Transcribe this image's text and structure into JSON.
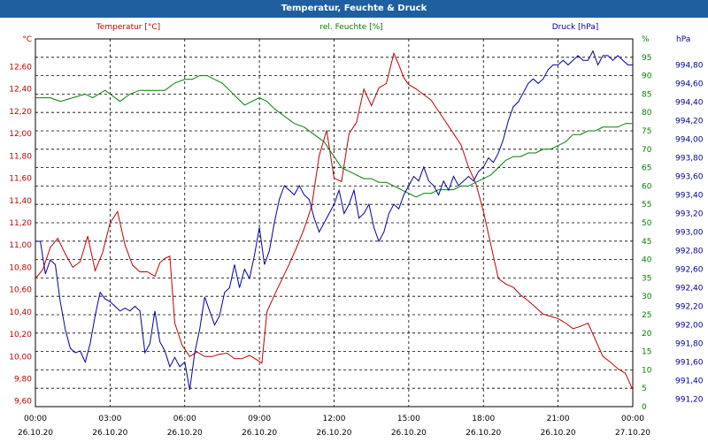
{
  "window": {
    "title": "Temperatur, Feuchte & Druck"
  },
  "chart_data": {
    "type": "line",
    "title": "Temperatur, Feuchte & Druck",
    "x_ticks": [
      {
        "time": "00:00",
        "date": "26.10.20"
      },
      {
        "time": "03:00",
        "date": "26.10.20"
      },
      {
        "time": "06:00",
        "date": "26.10.20"
      },
      {
        "time": "09:00",
        "date": "26.10.20"
      },
      {
        "time": "12:00",
        "date": "26.10.20"
      },
      {
        "time": "15:00",
        "date": "26.10.20"
      },
      {
        "time": "18:00",
        "date": "26.10.20"
      },
      {
        "time": "21:00",
        "date": "26.10.20"
      },
      {
        "time": "00:00",
        "date": "27.10.20"
      }
    ],
    "xlim": [
      0,
      24
    ],
    "axes": {
      "temp": {
        "unit": "°C",
        "ylim": [
          9.55,
          12.85
        ],
        "ticks": [
          "9,60",
          "9,80",
          "10,00",
          "10,20",
          "10,40",
          "10,60",
          "10,80",
          "11,00",
          "11,20",
          "11,40",
          "11,60",
          "11,80",
          "12,00",
          "12,20",
          "12,40",
          "12,60"
        ],
        "color": "#c00000"
      },
      "humidity": {
        "unit": "%",
        "ylim": [
          0,
          100
        ],
        "ticks": [
          "0",
          "5",
          "10",
          "15",
          "20",
          "25",
          "30",
          "35",
          "40",
          "45",
          "50",
          "55",
          "60",
          "65",
          "70",
          "75",
          "80",
          "85",
          "90",
          "95",
          "%"
        ],
        "color": "#008000"
      },
      "pressure": {
        "unit": "hPa",
        "ylim": [
          991.12,
          995.08
        ],
        "ticks": [
          "991,20",
          "991,40",
          "991,60",
          "991,80",
          "992,00",
          "992,20",
          "992,40",
          "992,60",
          "992,80",
          "993,00",
          "993,20",
          "993,40",
          "993,60",
          "993,80",
          "994,00",
          "994,20",
          "994,40",
          "994,60",
          "994,80",
          "hPa"
        ],
        "color": "#0000a0"
      }
    },
    "series": [
      {
        "name": "Temperatur [°C]",
        "axis": "temp",
        "color": "#c00000",
        "x": [
          0,
          0.3,
          0.6,
          0.9,
          1.2,
          1.5,
          1.8,
          2.1,
          2.4,
          2.7,
          3.0,
          3.3,
          3.6,
          3.9,
          4.2,
          4.5,
          4.8,
          5.0,
          5.2,
          5.4,
          5.6,
          5.9,
          6.2,
          6.5,
          6.8,
          7.1,
          7.4,
          7.7,
          8.0,
          8.3,
          8.6,
          8.9,
          9.1,
          9.3,
          9.6,
          9.9,
          10.2,
          10.5,
          10.8,
          11.1,
          11.4,
          11.7,
          12.0,
          12.3,
          12.6,
          12.9,
          13.2,
          13.5,
          13.8,
          14.1,
          14.4,
          14.6,
          14.8,
          15.0,
          15.3,
          15.6,
          15.9,
          16.2,
          16.5,
          16.8,
          17.1,
          17.4,
          17.7,
          18.0,
          18.3,
          18.6,
          18.9,
          19.2,
          19.5,
          19.8,
          20.1,
          20.4,
          20.7,
          21.0,
          21.3,
          21.6,
          21.9,
          22.2,
          22.5,
          22.8,
          23.1,
          23.4,
          23.7,
          24.0
        ],
        "values": [
          10.7,
          10.78,
          10.98,
          11.06,
          10.92,
          10.8,
          10.85,
          11.08,
          10.77,
          10.93,
          11.2,
          11.3,
          11.0,
          10.82,
          10.76,
          10.76,
          10.72,
          10.84,
          10.88,
          10.9,
          10.3,
          10.1,
          10.0,
          10.04,
          10.0,
          10.0,
          10.02,
          10.03,
          9.98,
          9.98,
          10.01,
          9.97,
          9.94,
          10.4,
          10.55,
          10.69,
          10.83,
          10.98,
          11.15,
          11.35,
          11.8,
          12.03,
          11.6,
          11.57,
          12.0,
          12.1,
          12.4,
          12.25,
          12.41,
          12.45,
          12.72,
          12.62,
          12.5,
          12.44,
          12.4,
          12.35,
          12.3,
          12.2,
          12.1,
          12.0,
          11.9,
          11.7,
          11.55,
          11.3,
          11.0,
          10.7,
          10.65,
          10.62,
          10.55,
          10.5,
          10.44,
          10.38,
          10.36,
          10.34,
          10.3,
          10.25,
          10.27,
          10.3,
          10.15,
          10.0,
          9.95,
          9.89,
          9.85,
          9.7
        ]
      },
      {
        "name": "rel. Feuchte [%]",
        "axis": "humidity",
        "color": "#008000",
        "x": [
          0,
          0.6,
          1.0,
          1.5,
          2.0,
          2.3,
          2.8,
          3.0,
          3.4,
          3.8,
          4.2,
          4.8,
          5.2,
          5.6,
          6.0,
          6.3,
          6.6,
          6.9,
          7.2,
          7.5,
          7.8,
          8.1,
          8.4,
          8.7,
          9.0,
          9.3,
          9.6,
          10.0,
          10.4,
          10.8,
          11.2,
          11.6,
          12.0,
          12.3,
          12.6,
          12.9,
          13.2,
          13.5,
          13.8,
          14.1,
          14.4,
          14.7,
          15.0,
          15.3,
          15.6,
          15.9,
          16.2,
          16.5,
          16.8,
          17.1,
          17.4,
          17.7,
          18.0,
          18.3,
          18.6,
          18.9,
          19.2,
          19.5,
          19.8,
          20.1,
          20.4,
          20.7,
          21.0,
          21.3,
          21.6,
          21.9,
          22.2,
          22.5,
          22.8,
          23.1,
          23.4,
          23.7,
          24.0
        ],
        "values": [
          84,
          84,
          83,
          84,
          85,
          84,
          86,
          85,
          83,
          85,
          86,
          86,
          86,
          88,
          89,
          89,
          90,
          90,
          89,
          88,
          86,
          84,
          82,
          83,
          84,
          83,
          81,
          79,
          77,
          76,
          74,
          72,
          68,
          65,
          64,
          63,
          62,
          62,
          61,
          61,
          60,
          59,
          58,
          57,
          58,
          58,
          59,
          59,
          59,
          60,
          60,
          61,
          62,
          63,
          65,
          67,
          68,
          68,
          69,
          69,
          70,
          70,
          71,
          72,
          74,
          74,
          75,
          75,
          76,
          76,
          76,
          77,
          77
        ]
      },
      {
        "name": "Druck [hPa]",
        "axis": "pressure",
        "color": "#0000a0",
        "x": [
          0,
          0.2,
          0.4,
          0.6,
          0.8,
          1.0,
          1.2,
          1.4,
          1.6,
          1.8,
          2.0,
          2.2,
          2.4,
          2.6,
          2.8,
          3.0,
          3.2,
          3.4,
          3.6,
          3.8,
          4.0,
          4.2,
          4.4,
          4.6,
          4.8,
          5.0,
          5.2,
          5.4,
          5.6,
          5.8,
          6.0,
          6.2,
          6.4,
          6.6,
          6.8,
          7.0,
          7.2,
          7.4,
          7.6,
          7.8,
          8.0,
          8.2,
          8.4,
          8.6,
          8.8,
          9.0,
          9.2,
          9.4,
          9.6,
          9.8,
          10.0,
          10.2,
          10.4,
          10.6,
          10.8,
          11.0,
          11.2,
          11.4,
          11.6,
          11.8,
          12.0,
          12.2,
          12.4,
          12.6,
          12.8,
          13.0,
          13.2,
          13.4,
          13.6,
          13.8,
          14.0,
          14.2,
          14.4,
          14.6,
          14.8,
          15.0,
          15.2,
          15.4,
          15.6,
          15.8,
          16.0,
          16.2,
          16.4,
          16.6,
          16.8,
          17.0,
          17.2,
          17.4,
          17.6,
          17.8,
          18.0,
          18.2,
          18.4,
          18.6,
          18.8,
          19.0,
          19.2,
          19.4,
          19.6,
          19.8,
          20.0,
          20.2,
          20.4,
          20.6,
          20.8,
          21.0,
          21.2,
          21.4,
          21.6,
          21.8,
          22.0,
          22.2,
          22.4,
          22.6,
          22.8,
          23.0,
          23.2,
          23.4,
          23.6,
          23.8,
          24.0
        ],
        "values": [
          992.9,
          992.9,
          992.55,
          992.7,
          992.65,
          992.25,
          991.95,
          991.75,
          991.7,
          991.72,
          991.6,
          991.8,
          992.1,
          992.35,
          992.28,
          992.25,
          992.2,
          992.15,
          992.18,
          992.15,
          992.2,
          992.15,
          991.7,
          991.8,
          992.15,
          991.82,
          991.72,
          991.55,
          991.65,
          991.55,
          991.6,
          991.3,
          991.7,
          991.95,
          992.3,
          992.15,
          992.0,
          992.1,
          992.35,
          992.4,
          992.65,
          992.4,
          992.6,
          992.5,
          992.75,
          993.05,
          992.65,
          992.8,
          993.1,
          993.35,
          993.5,
          993.45,
          993.4,
          993.5,
          993.4,
          993.35,
          993.15,
          993.0,
          993.1,
          993.2,
          993.3,
          993.45,
          993.2,
          993.3,
          993.45,
          993.15,
          993.2,
          993.3,
          993.05,
          992.9,
          993.0,
          993.2,
          993.3,
          993.25,
          993.4,
          993.5,
          993.6,
          993.55,
          993.7,
          993.55,
          993.5,
          993.4,
          993.55,
          993.45,
          993.6,
          993.5,
          993.55,
          993.6,
          993.55,
          993.65,
          993.7,
          993.8,
          993.75,
          993.85,
          994.0,
          994.2,
          994.35,
          994.4,
          994.5,
          994.6,
          994.65,
          994.6,
          994.65,
          994.75,
          994.8,
          994.8,
          994.85,
          994.8,
          994.85,
          994.9,
          994.85,
          994.85,
          994.95,
          994.8,
          994.9,
          994.9,
          994.85,
          994.9,
          994.85,
          994.8,
          994.8
        ]
      }
    ]
  }
}
